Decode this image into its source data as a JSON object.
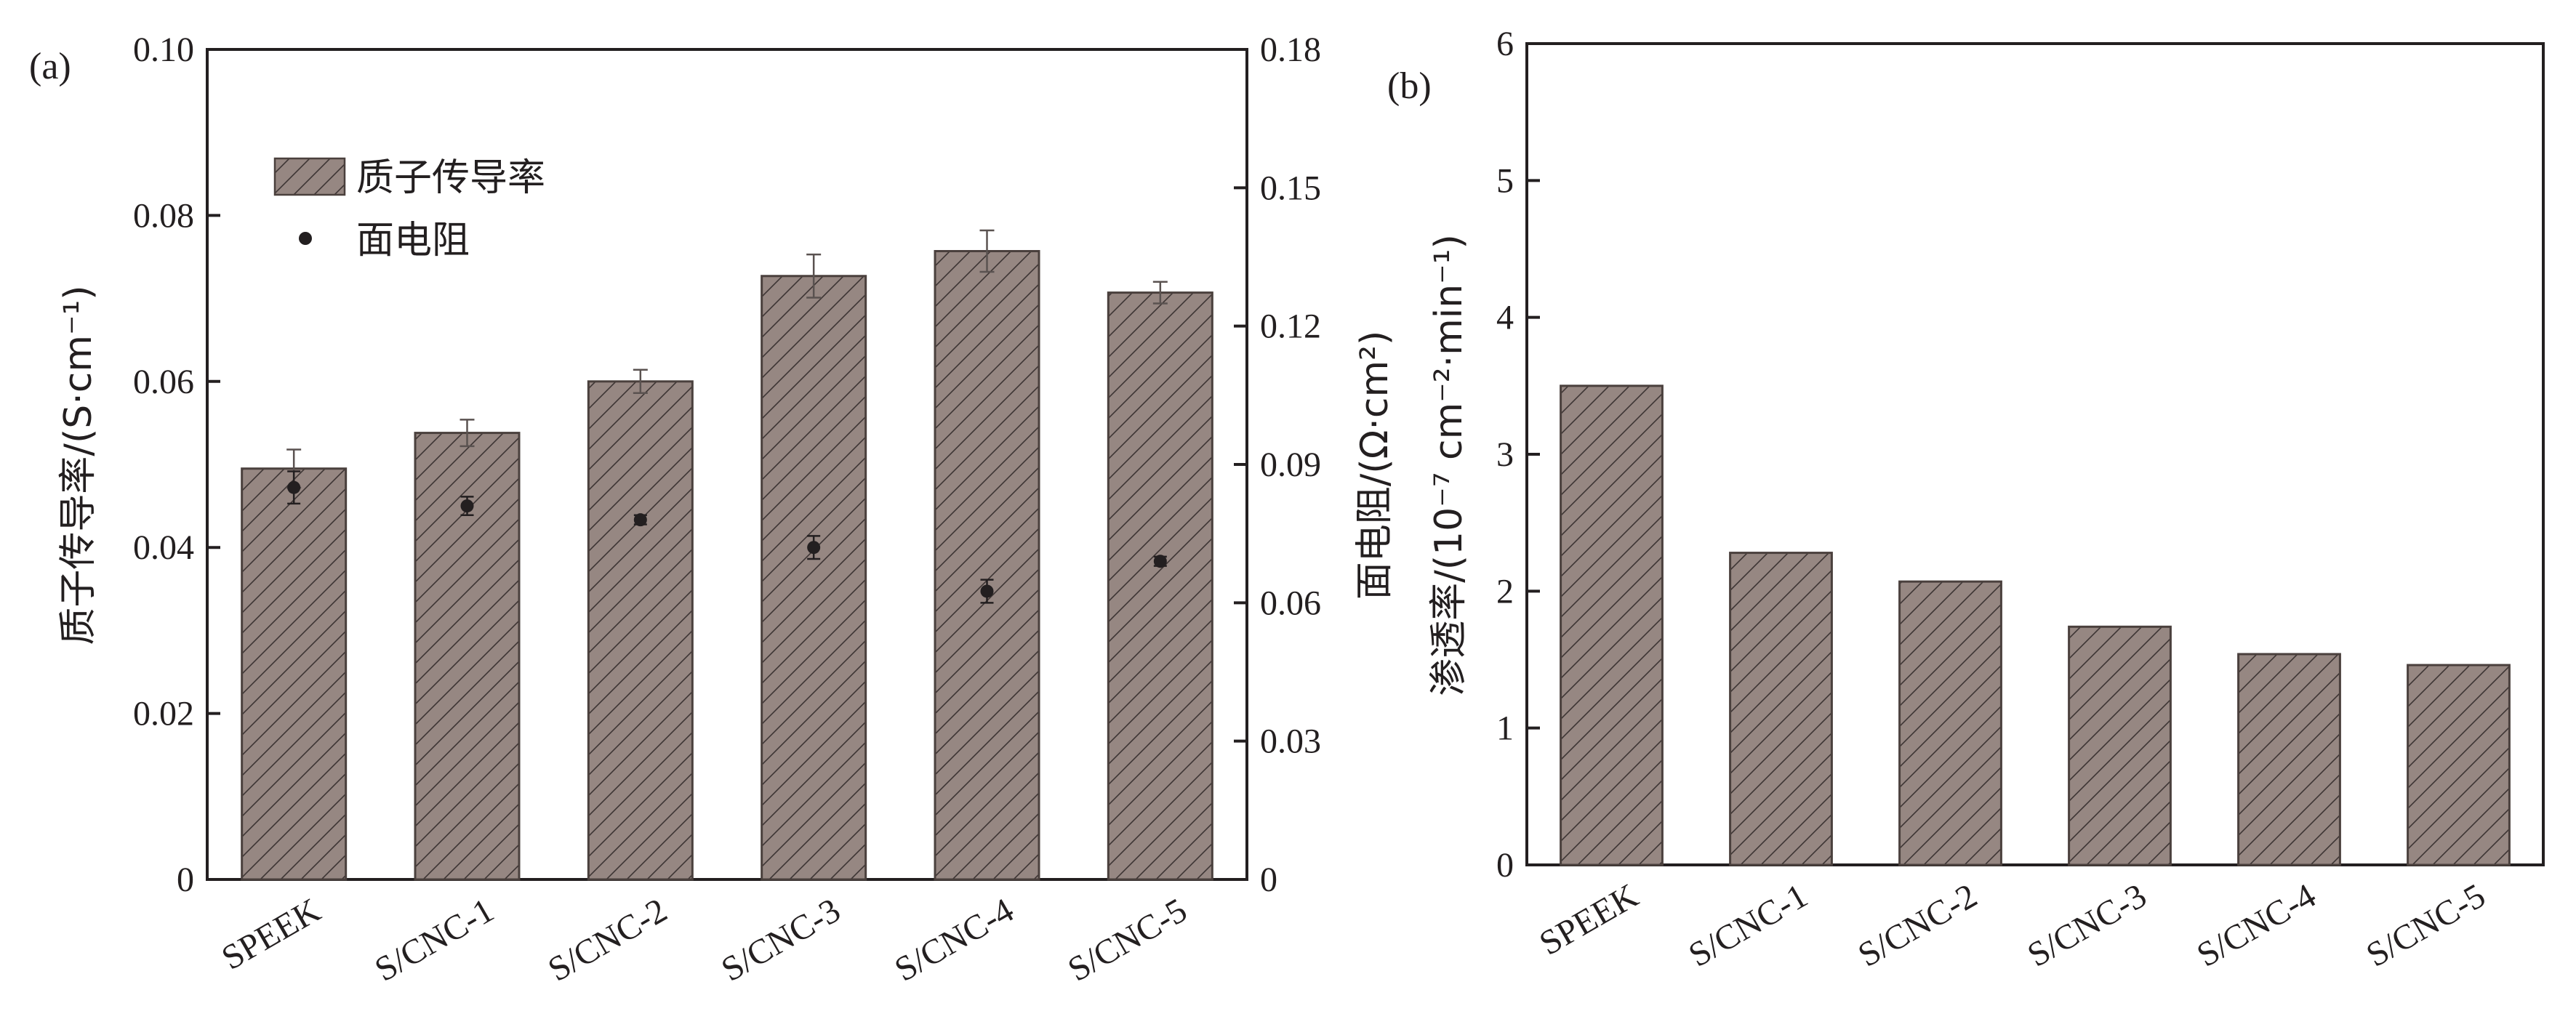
{
  "colors": {
    "bar_fill": "#968782",
    "bar_stroke": "#4a403d",
    "hatch": "#3d3533",
    "axis": "#231f20",
    "point": "#231f20",
    "background": "#ffffff"
  },
  "chart_data": [
    {
      "type": "bar",
      "panel_label": "(a)",
      "categories": [
        "SPEEK",
        "S/CNC-1",
        "S/CNC-2",
        "S/CNC-3",
        "S/CNC-4",
        "S/CNC-5"
      ],
      "series": [
        {
          "name": "质子传导率",
          "kind": "bar",
          "axis": "left",
          "values": [
            0.0495,
            0.0538,
            0.06,
            0.0727,
            0.0757,
            0.0707
          ],
          "errors": [
            0.0023,
            0.0016,
            0.0014,
            0.0026,
            0.0025,
            0.0013
          ]
        },
        {
          "name": "面电阻",
          "kind": "scatter",
          "axis": "right",
          "values": [
            0.085,
            0.081,
            0.078,
            0.072,
            0.0625,
            0.069
          ],
          "errors": [
            0.0035,
            0.002,
            0.001,
            0.0025,
            0.0025,
            0.001
          ]
        }
      ],
      "y_left": {
        "label": "质子传导率/(S·cm⁻¹)",
        "ylim": [
          0,
          0.1
        ],
        "ticks": [
          "0",
          "0.02",
          "0.04",
          "0.06",
          "0.08",
          "0.10"
        ],
        "tick_values": [
          0,
          0.02,
          0.04,
          0.06,
          0.08,
          0.1
        ]
      },
      "y_right": {
        "label": "面电阻/(Ω·cm²)",
        "ylim": [
          0,
          0.18
        ],
        "ticks": [
          "0",
          "0.03",
          "0.06",
          "0.09",
          "0.12",
          "0.15",
          "0.18"
        ],
        "tick_values": [
          0,
          0.03,
          0.06,
          0.09,
          0.12,
          0.15,
          0.18
        ]
      },
      "legend_placement": "top-left",
      "grid": false
    },
    {
      "type": "bar",
      "panel_label": "(b)",
      "categories": [
        "SPEEK",
        "S/CNC-1",
        "S/CNC-2",
        "S/CNC-3",
        "S/CNC-4",
        "S/CNC-5"
      ],
      "series": [
        {
          "name": "渗透率",
          "kind": "bar",
          "axis": "left",
          "values": [
            3.5,
            2.28,
            2.07,
            1.74,
            1.54,
            1.46
          ]
        }
      ],
      "y_left": {
        "label": "渗透率/(10⁻⁷ cm⁻²·min⁻¹)",
        "ylim": [
          0,
          6
        ],
        "ticks": [
          "0",
          "1",
          "2",
          "3",
          "4",
          "5",
          "6"
        ],
        "tick_values": [
          0,
          1,
          2,
          3,
          4,
          5,
          6
        ]
      },
      "grid": false
    }
  ]
}
